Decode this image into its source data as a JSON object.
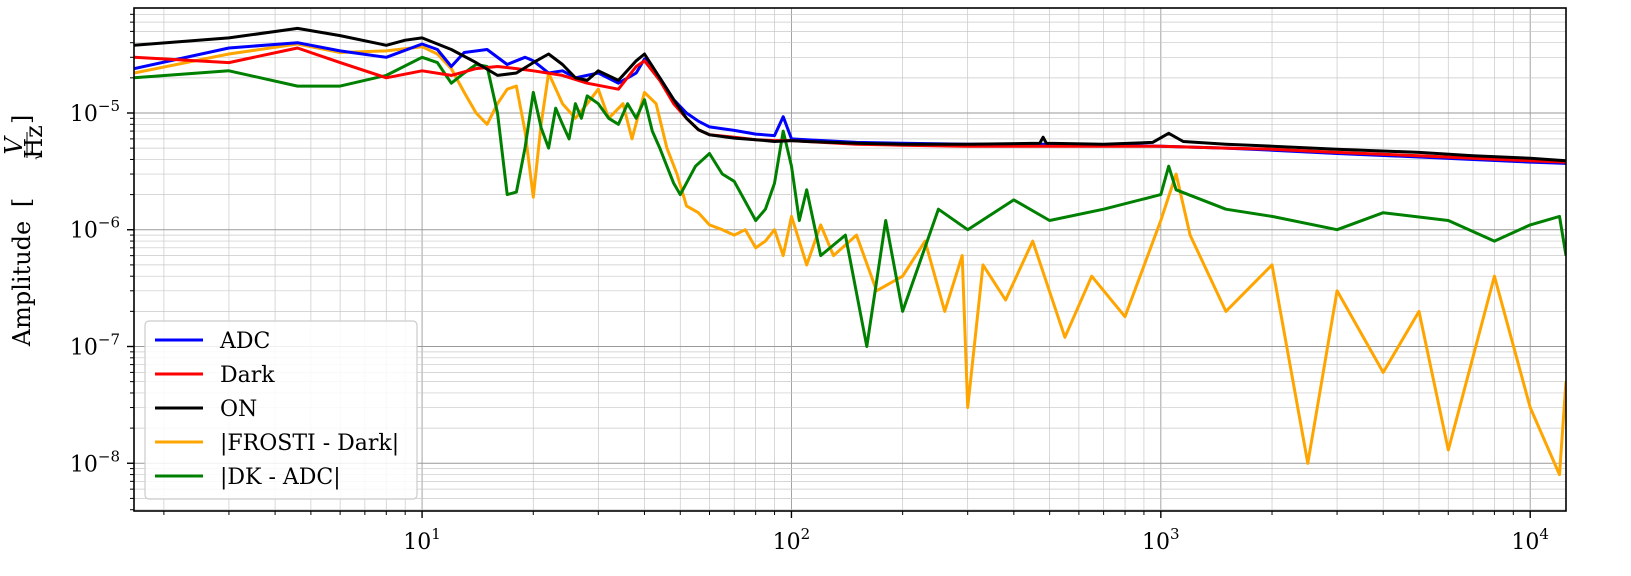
{
  "chart_data": {
    "type": "line",
    "title": "",
    "xlabel": "",
    "ylabel": "Amplitude",
    "ylabel_unit": {
      "numerator": "V",
      "denominator": "Hz"
    },
    "xscale": "log",
    "yscale": "log",
    "xlim": [
      1.66,
      12500
    ],
    "ylim": [
      3.9e-09,
      7.93e-05
    ],
    "grid": "both-major-minor",
    "legend_position": "lower-left",
    "x_ticks": [
      {
        "value": 10,
        "base": "10",
        "exp": "1"
      },
      {
        "value": 100,
        "base": "10",
        "exp": "2"
      },
      {
        "value": 1000,
        "base": "10",
        "exp": "3"
      },
      {
        "value": 10000,
        "base": "10",
        "exp": "4"
      }
    ],
    "y_ticks": [
      {
        "value": 1e-08,
        "base": "10",
        "exp": "−8"
      },
      {
        "value": 1e-07,
        "base": "10",
        "exp": "−7"
      },
      {
        "value": 1e-06,
        "base": "10",
        "exp": "−6"
      },
      {
        "value": 1e-05,
        "base": "10",
        "exp": "−5"
      }
    ],
    "series": [
      {
        "name": "ADC",
        "color": "#0000ff",
        "x": [
          1.66,
          3,
          4.6,
          6,
          8,
          10,
          11,
          12,
          13,
          15,
          17,
          19,
          20,
          22,
          24,
          26,
          30,
          34,
          38,
          40,
          44,
          48,
          52,
          56,
          60,
          70,
          80,
          90,
          95,
          100,
          110,
          150,
          200,
          300,
          480,
          700,
          1000,
          1500,
          2000,
          3000,
          5000,
          7000,
          10000,
          12500
        ],
        "y": [
          2.4e-05,
          3.6e-05,
          4e-05,
          3.4e-05,
          3e-05,
          3.9e-05,
          3.5e-05,
          2.5e-05,
          3.3e-05,
          3.5e-05,
          2.6e-05,
          3e-05,
          2.8e-05,
          2.2e-05,
          2.3e-05,
          2e-05,
          2.2e-05,
          1.8e-05,
          2.2e-05,
          2.9e-05,
          2e-05,
          1.3e-05,
          1e-05,
          8.5e-06,
          7.6e-06,
          7.1e-06,
          6.6e-06,
          6.4e-06,
          9.3e-06,
          6e-06,
          5.9e-06,
          5.6e-06,
          5.5e-06,
          5.4e-06,
          5.4e-06,
          5.3e-06,
          5.2e-06,
          5e-06,
          4.8e-06,
          4.5e-06,
          4.2e-06,
          4e-06,
          3.8e-06,
          3.7e-06
        ]
      },
      {
        "name": "Dark",
        "color": "#ff0000",
        "x": [
          1.66,
          3,
          4.6,
          6,
          8,
          10,
          12,
          14,
          16,
          18,
          20,
          24,
          28,
          34,
          38,
          40,
          44,
          48,
          52,
          56,
          60,
          70,
          80,
          90,
          100,
          110,
          150,
          200,
          300,
          480,
          700,
          1000,
          1500,
          2000,
          3000,
          5000,
          7000,
          10000,
          12500
        ],
        "y": [
          3e-05,
          2.7e-05,
          3.6e-05,
          2.7e-05,
          2e-05,
          2.3e-05,
          2.1e-05,
          2.4e-05,
          2.5e-05,
          2.4e-05,
          2.3e-05,
          2.1e-05,
          1.8e-05,
          1.6e-05,
          2.5e-05,
          2.8e-05,
          1.9e-05,
          1.2e-05,
          9e-06,
          7.2e-06,
          6.5e-06,
          6.2e-06,
          5.9e-06,
          5.8e-06,
          5.8e-06,
          5.7e-06,
          5.4e-06,
          5.3e-06,
          5.2e-06,
          5.2e-06,
          5.2e-06,
          5.2e-06,
          5e-06,
          4.9e-06,
          4.6e-06,
          4.3e-06,
          4.1e-06,
          3.9e-06,
          3.8e-06
        ]
      },
      {
        "name": "ON",
        "color": "#000000",
        "x": [
          1.66,
          3,
          4.6,
          6,
          8,
          9,
          10,
          12,
          14,
          16,
          18,
          20,
          22,
          24,
          26,
          28,
          30,
          34,
          38,
          40,
          44,
          48,
          52,
          56,
          60,
          70,
          80,
          90,
          100,
          110,
          150,
          200,
          300,
          470,
          480,
          490,
          700,
          950,
          1050,
          1150,
          1500,
          2000,
          3000,
          5000,
          7000,
          10000,
          12500
        ],
        "y": [
          3.8e-05,
          4.4e-05,
          5.3e-05,
          4.6e-05,
          3.8e-05,
          4.2e-05,
          4.4e-05,
          3.5e-05,
          2.7e-05,
          2.1e-05,
          2.2e-05,
          2.7e-05,
          3.2e-05,
          2.6e-05,
          2e-05,
          1.9e-05,
          2.3e-05,
          1.9e-05,
          2.8e-05,
          3.2e-05,
          2e-05,
          1.3e-05,
          9e-06,
          7.2e-06,
          6.5e-06,
          6.1e-06,
          5.9e-06,
          5.7e-06,
          5.8e-06,
          5.7e-06,
          5.5e-06,
          5.4e-06,
          5.4e-06,
          5.5e-06,
          6.2e-06,
          5.5e-06,
          5.4e-06,
          5.6e-06,
          6.7e-06,
          5.7e-06,
          5.4e-06,
          5.2e-06,
          4.9e-06,
          4.6e-06,
          4.3e-06,
          4.1e-06,
          3.9e-06
        ]
      },
      {
        "name": "|FROSTI - Dark|",
        "color": "#ffa500",
        "x": [
          1.66,
          3,
          4.6,
          6,
          8,
          10,
          11,
          12,
          13,
          14,
          15,
          16,
          17,
          18,
          19,
          20,
          21,
          22,
          24,
          26,
          28,
          30,
          32,
          35,
          37,
          40,
          43,
          46,
          49,
          52,
          56,
          60,
          65,
          70,
          75,
          80,
          85,
          90,
          95,
          100,
          105,
          110,
          120,
          130,
          150,
          170,
          200,
          230,
          260,
          290,
          300,
          330,
          380,
          450,
          550,
          650,
          800,
          1000,
          1100,
          1200,
          1500,
          2000,
          2500,
          3000,
          4000,
          5000,
          6000,
          8000,
          10000,
          12000,
          12500
        ],
        "y": [
          2.2e-05,
          3.2e-05,
          3.9e-05,
          3.3e-05,
          3.4e-05,
          3.7e-05,
          3.2e-05,
          2.4e-05,
          1.5e-05,
          1e-05,
          8e-06,
          1.2e-05,
          1.6e-05,
          1.7e-05,
          7e-06,
          1.9e-06,
          8e-06,
          2.2e-05,
          1.2e-05,
          9e-06,
          1.2e-05,
          1.6e-05,
          9e-06,
          1.2e-05,
          6e-06,
          1.5e-05,
          1.2e-05,
          5e-06,
          3e-06,
          1.6e-06,
          1.4e-06,
          1.1e-06,
          1e-06,
          9e-07,
          1e-06,
          7e-07,
          8e-07,
          1e-06,
          6e-07,
          1.3e-06,
          8e-07,
          5e-07,
          1.1e-06,
          6e-07,
          9e-07,
          3e-07,
          4e-07,
          8e-07,
          2e-07,
          6e-07,
          3e-08,
          5e-07,
          2.5e-07,
          8e-07,
          1.2e-07,
          4e-07,
          1.8e-07,
          1.2e-06,
          3e-06,
          9e-07,
          2e-07,
          5e-07,
          1e-08,
          3e-07,
          6e-08,
          2e-07,
          1.3e-08,
          4e-07,
          3e-08,
          8e-09,
          5e-08
        ]
      },
      {
        "name": "|DK - ADC|",
        "color": "#008000",
        "x": [
          1.66,
          3,
          4.6,
          6,
          8,
          10,
          11,
          12,
          13,
          14,
          15,
          16,
          17,
          18,
          19,
          20,
          21,
          22,
          23,
          24,
          25,
          26,
          27,
          28,
          30,
          32,
          34,
          36,
          38,
          40,
          42,
          44,
          46,
          48,
          50,
          55,
          60,
          65,
          70,
          80,
          85,
          90,
          95,
          100,
          105,
          110,
          120,
          140,
          160,
          180,
          200,
          250,
          300,
          400,
          500,
          700,
          1000,
          1050,
          1100,
          1500,
          2000,
          3000,
          4000,
          6000,
          8000,
          10000,
          12000,
          12500
        ],
        "y": [
          2e-05,
          2.3e-05,
          1.7e-05,
          1.7e-05,
          2.1e-05,
          3e-05,
          2.7e-05,
          1.8e-05,
          2.2e-05,
          2.6e-05,
          2.5e-05,
          1e-05,
          2e-06,
          2.1e-06,
          5e-06,
          1.5e-05,
          7.5e-06,
          5e-06,
          1.1e-05,
          8e-06,
          6e-06,
          1.2e-05,
          9e-06,
          1.4e-05,
          1.2e-05,
          9e-06,
          8e-06,
          1.2e-05,
          9e-06,
          1.3e-05,
          7e-06,
          5e-06,
          3.5e-06,
          2.5e-06,
          2e-06,
          3.5e-06,
          4.5e-06,
          3e-06,
          2.6e-06,
          1.2e-06,
          1.5e-06,
          2.5e-06,
          7e-06,
          3.5e-06,
          1.2e-06,
          2.2e-06,
          6e-07,
          9e-07,
          1e-07,
          1.2e-06,
          2e-07,
          1.5e-06,
          1e-06,
          1.8e-06,
          1.2e-06,
          1.5e-06,
          2e-06,
          3.5e-06,
          2.2e-06,
          1.5e-06,
          1.3e-06,
          1e-06,
          1.4e-06,
          1.2e-06,
          8e-07,
          1.1e-06,
          1.3e-06,
          6e-07
        ]
      }
    ]
  }
}
